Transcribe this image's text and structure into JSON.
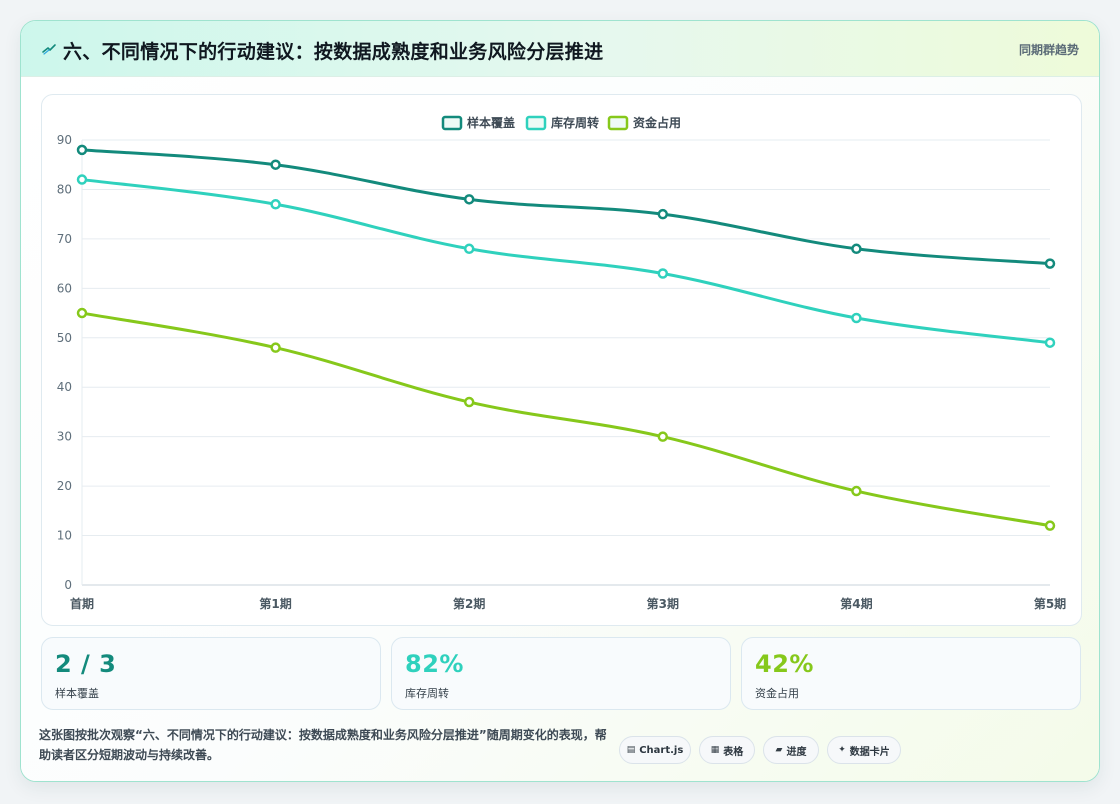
{
  "header": {
    "title": "六、不同情况下的行动建议：按数据成熟度和业务风险分层推进",
    "subtitle": "同期群趋势"
  },
  "colors": {
    "series1": "#138a7c",
    "series2": "#2fd1bd",
    "series3": "#86c81b"
  },
  "chart_data": {
    "type": "line",
    "categories": [
      "首期",
      "第1期",
      "第2期",
      "第3期",
      "第4期",
      "第5期"
    ],
    "series": [
      {
        "name": "样本覆盖",
        "values": [
          88,
          85,
          78,
          75,
          68,
          65
        ]
      },
      {
        "name": "库存周转",
        "values": [
          82,
          77,
          68,
          63,
          54,
          49
        ]
      },
      {
        "name": "资金占用",
        "values": [
          55,
          48,
          37,
          30,
          19,
          12
        ]
      }
    ],
    "yticks": [
      "0",
      "10",
      "20",
      "30",
      "40",
      "50",
      "60",
      "70",
      "80",
      "90"
    ],
    "ylim": [
      0,
      90
    ],
    "legend_position": "top",
    "grid": true
  },
  "kpis": [
    {
      "value": "2 / 3",
      "label": "样本覆盖",
      "color": "#138a7c"
    },
    {
      "value": "82%",
      "label": "库存周转",
      "color": "#2fd1bd"
    },
    {
      "value": "42%",
      "label": "资金占用",
      "color": "#86c81b"
    }
  ],
  "description": "这张图按批次观察“六、不同情况下的行动建议：按数据成熟度和业务风险分层推进”随周期变化的表现，帮助读者区分短期波动与持续改善。",
  "badges": [
    {
      "icon": "chart-icon",
      "glyph": "▤",
      "label": "Chart.js"
    },
    {
      "icon": "table-icon",
      "glyph": "▦",
      "label": "表格"
    },
    {
      "icon": "progress-icon",
      "glyph": "▰",
      "label": "进度"
    },
    {
      "icon": "sparkle-icon",
      "glyph": "✦",
      "label": "数据卡片"
    }
  ]
}
